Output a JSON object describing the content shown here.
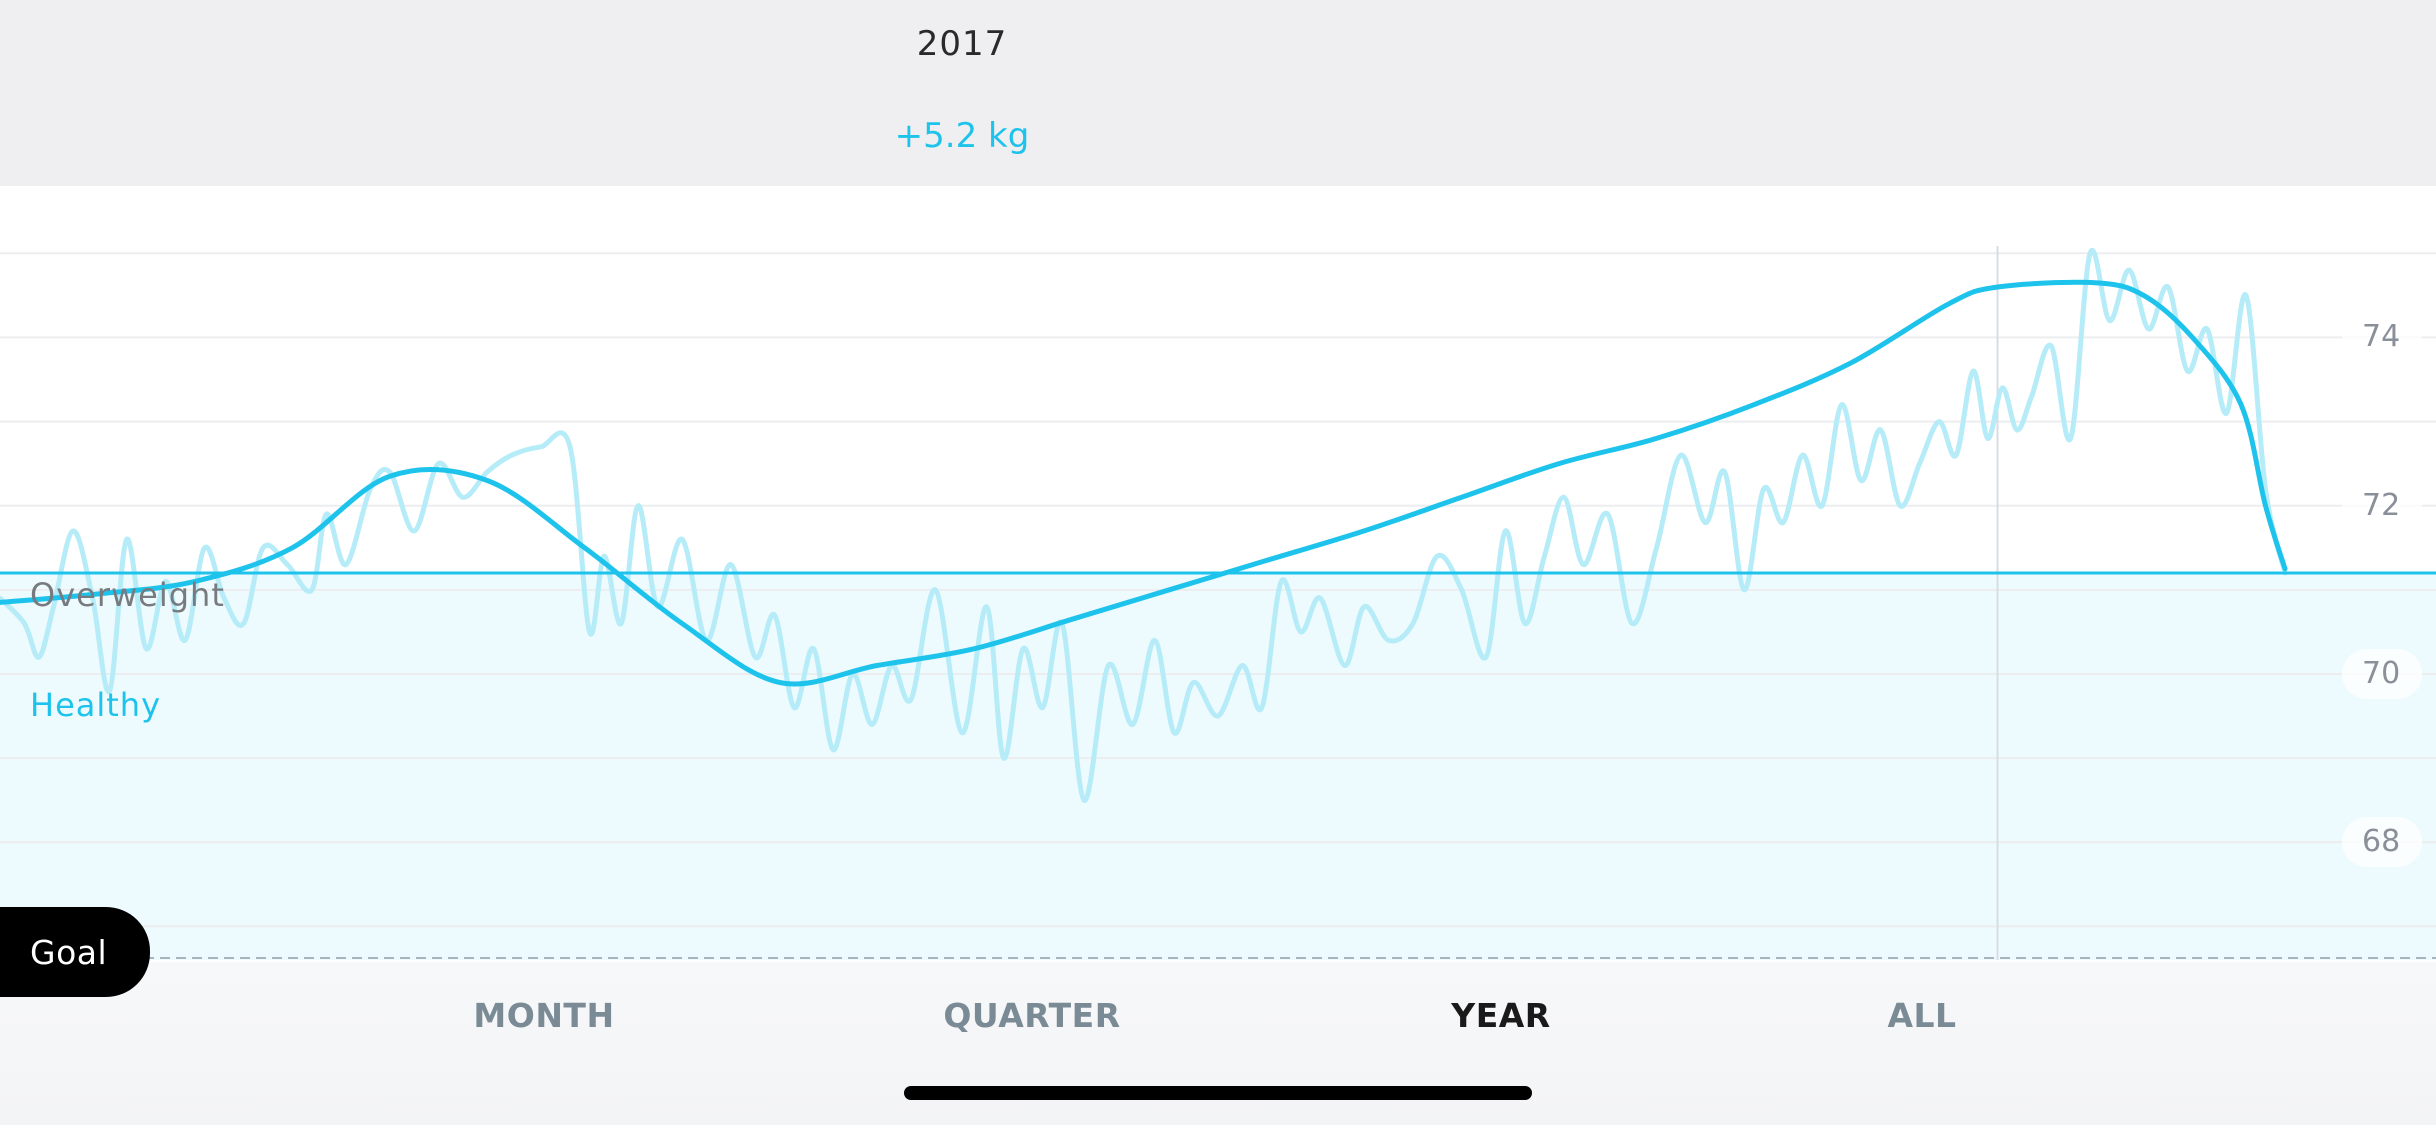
{
  "header": {
    "period_title": "2017",
    "weight_change": "+5.2 kg"
  },
  "zones": {
    "overweight_label": "Overweight",
    "healthy_label": "Healthy",
    "goal_label": "Goal"
  },
  "tabs": [
    {
      "label": "MONTH",
      "active": false
    },
    {
      "label": "QUARTER",
      "active": false
    },
    {
      "label": "YEAR",
      "active": true
    },
    {
      "label": "ALL",
      "active": false
    }
  ],
  "colors": {
    "accent": "#1ec3ec",
    "raw_line": "#b6ecf8",
    "healthy_fill": "#eefbfe",
    "header_bg": "#efeff1"
  },
  "chart_data": {
    "type": "line",
    "title": "",
    "xlabel": "",
    "ylabel": "",
    "ylim": [
      66.6,
      75.8
    ],
    "yticks": [
      68,
      70,
      72,
      74
    ],
    "ytick_labels": [
      "68",
      "70",
      "72",
      "74"
    ],
    "grid": true,
    "overweight_threshold": 71.2,
    "goal_line": 66.6,
    "cursor_x": 0.82,
    "series": [
      {
        "style": "raw",
        "x": [
          0.0,
          0.01,
          0.016,
          0.022,
          0.03,
          0.038,
          0.045,
          0.052,
          0.06,
          0.068,
          0.076,
          0.084,
          0.092,
          0.1,
          0.108,
          0.118,
          0.128,
          0.134,
          0.142,
          0.152,
          0.16,
          0.17,
          0.18,
          0.19,
          0.2,
          0.21,
          0.222,
          0.234,
          0.242,
          0.248,
          0.255,
          0.262,
          0.27,
          0.28,
          0.29,
          0.3,
          0.31,
          0.318,
          0.326,
          0.334,
          0.342,
          0.35,
          0.358,
          0.366,
          0.374,
          0.384,
          0.395,
          0.405,
          0.412,
          0.42,
          0.428,
          0.436,
          0.445,
          0.455,
          0.465,
          0.474,
          0.482,
          0.49,
          0.5,
          0.51,
          0.518,
          0.526,
          0.534,
          0.542,
          0.552,
          0.56,
          0.57,
          0.58,
          0.59,
          0.6,
          0.61,
          0.618,
          0.626,
          0.634,
          0.642,
          0.65,
          0.66,
          0.67,
          0.68,
          0.69,
          0.7,
          0.708,
          0.716,
          0.724,
          0.732,
          0.74,
          0.748,
          0.756,
          0.764,
          0.772,
          0.78,
          0.788,
          0.796,
          0.803,
          0.81,
          0.816,
          0.822,
          0.828,
          0.834,
          0.842,
          0.85,
          0.858,
          0.866,
          0.874,
          0.882,
          0.89,
          0.898,
          0.906,
          0.914,
          0.922,
          0.93,
          0.938
        ],
        "y": [
          70.9,
          70.6,
          70.2,
          70.8,
          71.7,
          70.9,
          69.8,
          71.6,
          70.3,
          71.1,
          70.4,
          71.5,
          70.9,
          70.6,
          71.5,
          71.3,
          71.0,
          71.9,
          71.3,
          72.2,
          72.4,
          71.7,
          72.5,
          72.1,
          72.4,
          72.6,
          72.7,
          72.7,
          70.5,
          71.4,
          70.6,
          72.0,
          70.8,
          71.6,
          70.4,
          71.3,
          70.2,
          70.7,
          69.6,
          70.3,
          69.1,
          70.0,
          69.4,
          70.1,
          69.7,
          71.0,
          69.3,
          70.8,
          69.0,
          70.3,
          69.6,
          70.6,
          68.5,
          70.1,
          69.4,
          70.4,
          69.3,
          69.9,
          69.5,
          70.1,
          69.6,
          71.1,
          70.5,
          70.9,
          70.1,
          70.8,
          70.4,
          70.6,
          71.4,
          71.0,
          70.2,
          71.7,
          70.6,
          71.4,
          72.1,
          71.3,
          71.9,
          70.6,
          71.5,
          72.6,
          71.8,
          72.4,
          71.0,
          72.2,
          71.8,
          72.6,
          72.0,
          73.2,
          72.3,
          72.9,
          72.0,
          72.5,
          73.0,
          72.6,
          73.6,
          72.8,
          73.4,
          72.9,
          73.3,
          73.9,
          72.8,
          75.0,
          74.2,
          74.8,
          74.1,
          74.6,
          73.6,
          74.1,
          73.1,
          74.5,
          72.2,
          71.2
        ]
      },
      {
        "style": "trend",
        "x": [
          0.0,
          0.04,
          0.08,
          0.12,
          0.16,
          0.2,
          0.24,
          0.28,
          0.32,
          0.36,
          0.4,
          0.44,
          0.48,
          0.52,
          0.56,
          0.6,
          0.64,
          0.68,
          0.72,
          0.76,
          0.8,
          0.82,
          0.86,
          0.88,
          0.9,
          0.92,
          0.93,
          0.938
        ],
        "y": [
          70.85,
          70.95,
          71.1,
          71.5,
          72.35,
          72.3,
          71.5,
          70.6,
          69.9,
          70.1,
          70.3,
          70.65,
          71.0,
          71.35,
          71.7,
          72.1,
          72.5,
          72.8,
          73.2,
          73.7,
          74.4,
          74.6,
          74.65,
          74.5,
          74.0,
          73.2,
          72.0,
          71.25
        ]
      }
    ]
  }
}
